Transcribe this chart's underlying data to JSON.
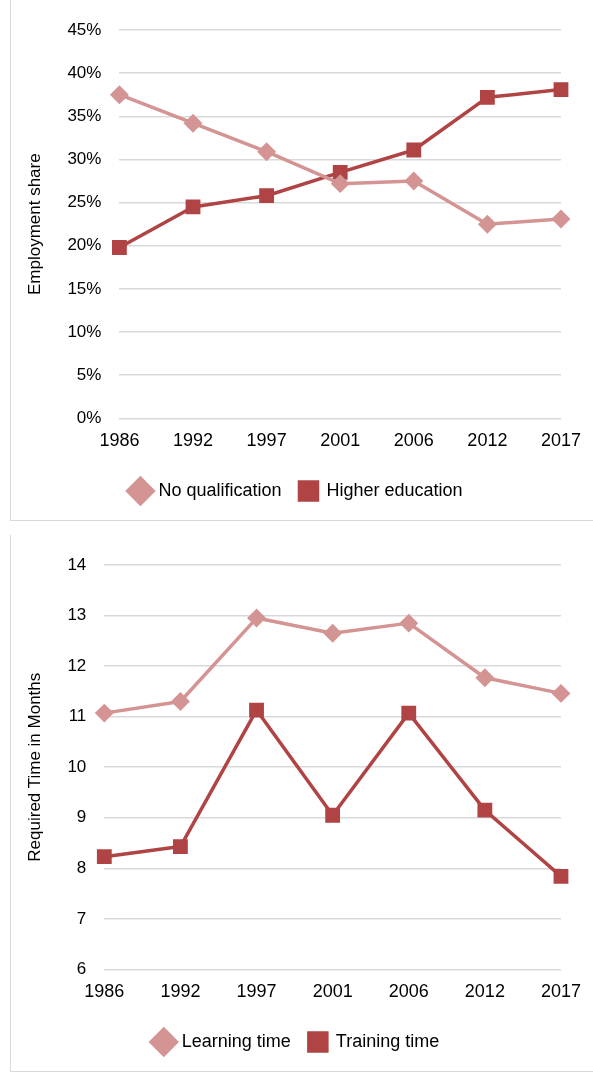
{
  "chart_data": [
    {
      "type": "line",
      "ylabel": "Employment share",
      "categories": [
        "1986",
        "1992",
        "1997",
        "2001",
        "2006",
        "2012",
        "2017"
      ],
      "series": [
        {
          "name": "No qualification",
          "color": "#d49494",
          "marker": "diamond",
          "values": [
            37.5,
            34.2,
            30.9,
            27.2,
            27.5,
            22.5,
            23.1
          ]
        },
        {
          "name": "Higher education",
          "color": "#b04444",
          "marker": "square",
          "values": [
            19.8,
            24.5,
            25.8,
            28.5,
            31.1,
            37.2,
            38.1
          ]
        }
      ],
      "ylim": [
        0,
        45
      ],
      "yticks": [
        {
          "value": 0,
          "label": "0%"
        },
        {
          "value": 5,
          "label": "5%"
        },
        {
          "value": 10,
          "label": "10%"
        },
        {
          "value": 15,
          "label": "15%"
        },
        {
          "value": 20,
          "label": "20%"
        },
        {
          "value": 25,
          "label": "25%"
        },
        {
          "value": 30,
          "label": "30%"
        },
        {
          "value": 35,
          "label": "35%"
        },
        {
          "value": 40,
          "label": "40%"
        },
        {
          "value": 45,
          "label": "45%"
        }
      ],
      "grid": "y",
      "legend": "bottom"
    },
    {
      "type": "line",
      "ylabel": "Required Time in Months",
      "categories": [
        "1986",
        "1992",
        "1997",
        "2001",
        "2006",
        "2012",
        "2017"
      ],
      "series": [
        {
          "name": "Learning time",
          "color": "#d49494",
          "marker": "diamond",
          "values": [
            11.07,
            11.3,
            12.95,
            12.65,
            12.85,
            11.77,
            11.46
          ]
        },
        {
          "name": "Training time",
          "color": "#b04444",
          "marker": "square",
          "values": [
            8.23,
            8.43,
            11.13,
            9.05,
            11.07,
            9.15,
            7.84
          ]
        }
      ],
      "ylim": [
        6,
        14
      ],
      "yticks": [
        6,
        7,
        8,
        9,
        10,
        11,
        12,
        13,
        14
      ],
      "grid": "y",
      "legend": "bottom"
    }
  ]
}
